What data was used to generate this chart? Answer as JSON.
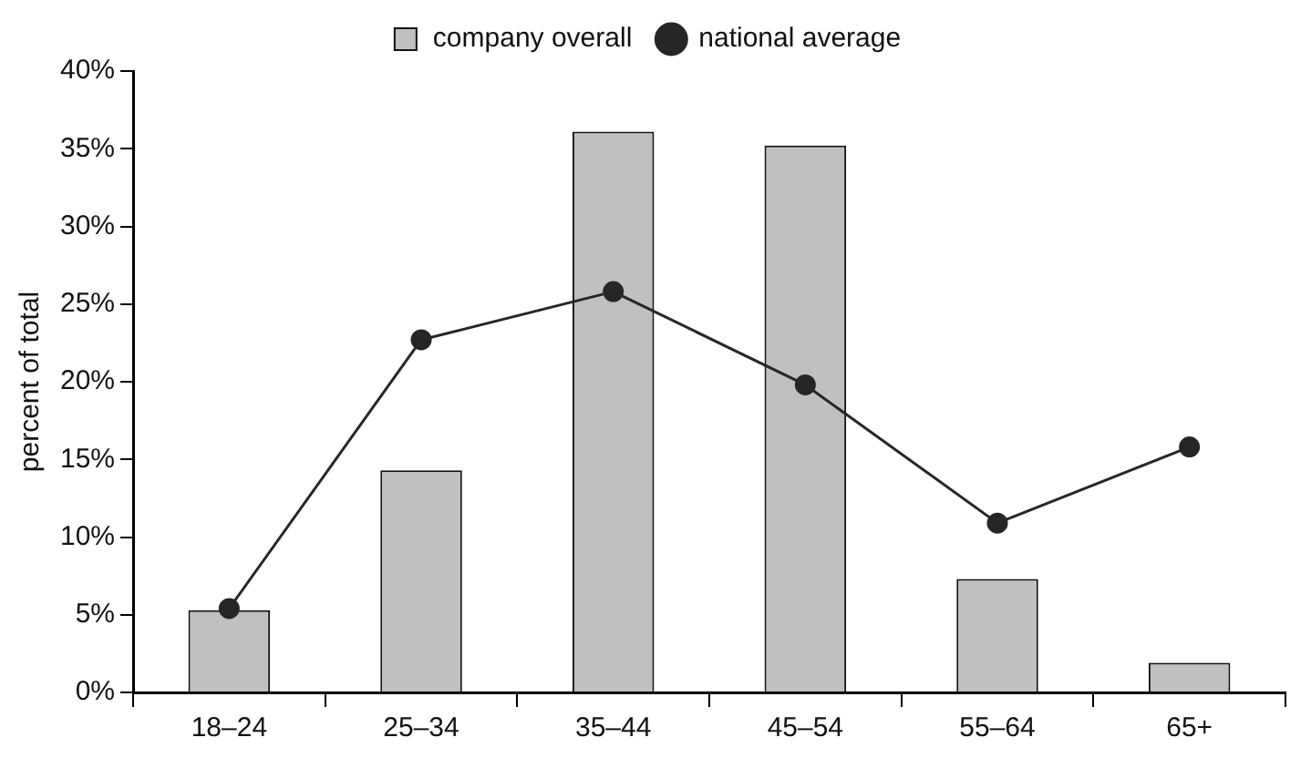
{
  "chart_data": {
    "type": "bar",
    "ylabel": "percent of total",
    "categories": [
      "18–24",
      "25–34",
      "35–44",
      "45–54",
      "55–64",
      "65+"
    ],
    "series": [
      {
        "name": "company overall",
        "color": "#c0c0c0",
        "values": [
          5.3,
          14.3,
          36.1,
          35.2,
          7.3,
          1.9
        ]
      },
      {
        "name": "national average",
        "type": "line",
        "color": "#262626",
        "values": [
          5.4,
          22.7,
          25.8,
          19.8,
          10.9,
          15.8
        ]
      }
    ],
    "ylim": [
      0,
      40
    ],
    "yticks": [
      {
        "value": 0,
        "label": "0%"
      },
      {
        "value": 5,
        "label": "5%"
      },
      {
        "value": 10,
        "label": "10%"
      },
      {
        "value": 15,
        "label": "15%"
      },
      {
        "value": 20,
        "label": "20%"
      },
      {
        "value": 25,
        "label": "25%"
      },
      {
        "value": 30,
        "label": "30%"
      },
      {
        "value": 35,
        "label": "35%"
      },
      {
        "value": 40,
        "label": "40%"
      }
    ],
    "grid": false,
    "legend": "top",
    "marker": "circle",
    "line_style": "solid"
  }
}
